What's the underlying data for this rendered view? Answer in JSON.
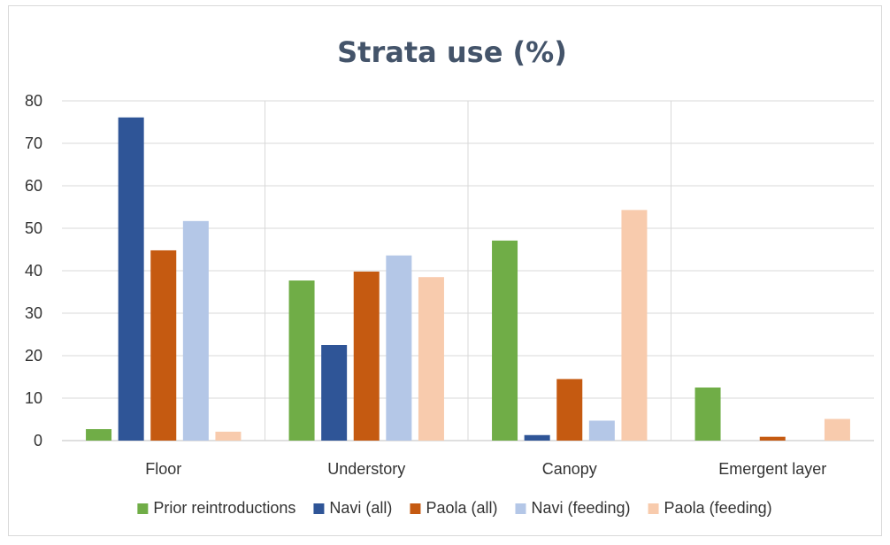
{
  "chart_data": {
    "type": "bar",
    "title": "Strata use (%)",
    "xlabel": "",
    "ylabel": "",
    "ylim": [
      0,
      80
    ],
    "yticks": [
      0,
      10,
      20,
      30,
      40,
      50,
      60,
      70,
      80
    ],
    "grid": true,
    "legend": "bottom",
    "categories": [
      "Floor",
      "Understory",
      "Canopy",
      "Emergent layer"
    ],
    "series": [
      {
        "name": "Prior reintroductions",
        "color": "#70ad47",
        "values": [
          2.7,
          37.7,
          47.1,
          12.5
        ]
      },
      {
        "name": "Navi (all)",
        "color": "#2f5597",
        "values": [
          76.1,
          22.5,
          1.3,
          0
        ]
      },
      {
        "name": "Paola (all)",
        "color": "#c55a11",
        "values": [
          44.8,
          39.8,
          14.5,
          0.9
        ]
      },
      {
        "name": "Navi (feeding)",
        "color": "#b4c7e7",
        "values": [
          51.7,
          43.6,
          4.7,
          0
        ]
      },
      {
        "name": "Paola (feeding)",
        "color": "#f8cbad",
        "values": [
          2.1,
          38.5,
          54.3,
          5.1
        ]
      }
    ]
  }
}
